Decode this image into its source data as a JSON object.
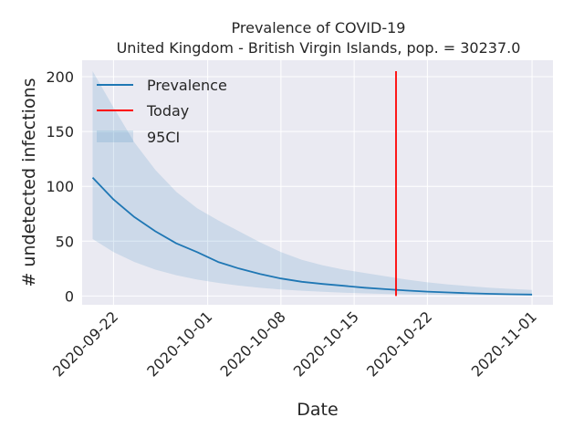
{
  "chart_data": {
    "type": "line",
    "title": "Prevalence of COVID-19",
    "subtitle": "United Kingdom - British Virgin Islands, pop. = 30237.0",
    "xlabel": "Date",
    "ylabel": "# undetected infections",
    "x_ticks": [
      "2020-09-22",
      "2020-10-01",
      "2020-10-08",
      "2020-10-15",
      "2020-10-22",
      "2020-11-01"
    ],
    "y_ticks": [
      0,
      50,
      100,
      150,
      200
    ],
    "ylim": [
      -8,
      215
    ],
    "xlim": [
      "2020-09-19",
      "2020-11-03"
    ],
    "grid": true,
    "legend_position": "top-left",
    "series": [
      {
        "name": "Prevalence",
        "color": "#1f77b4",
        "x": [
          "2020-09-20",
          "2020-09-22",
          "2020-09-24",
          "2020-09-26",
          "2020-09-28",
          "2020-09-30",
          "2020-10-02",
          "2020-10-04",
          "2020-10-06",
          "2020-10-08",
          "2020-10-10",
          "2020-10-12",
          "2020-10-14",
          "2020-10-16",
          "2020-10-18",
          "2020-10-20",
          "2020-10-22",
          "2020-10-24",
          "2020-10-26",
          "2020-10-28",
          "2020-10-30",
          "2020-11-01"
        ],
        "y": [
          108,
          88,
          72,
          59,
          48,
          40,
          31,
          25,
          20,
          16,
          13,
          11,
          9.3,
          7.6,
          6.2,
          5,
          4,
          3.2,
          2.5,
          2,
          1.6,
          1.3
        ]
      }
    ],
    "ci_band": {
      "name": "95CI",
      "color": "#1f77b4",
      "x": [
        "2020-09-20",
        "2020-09-22",
        "2020-09-24",
        "2020-09-26",
        "2020-09-28",
        "2020-09-30",
        "2020-10-02",
        "2020-10-04",
        "2020-10-06",
        "2020-10-08",
        "2020-10-10",
        "2020-10-12",
        "2020-10-14",
        "2020-10-16",
        "2020-10-18",
        "2020-10-20",
        "2020-10-22",
        "2020-10-24",
        "2020-10-26",
        "2020-10-28",
        "2020-10-30",
        "2020-11-01"
      ],
      "upper": [
        205,
        172,
        140,
        115,
        95,
        80,
        69,
        59,
        49,
        40,
        33,
        28,
        24,
        21,
        18,
        15,
        12.5,
        10.5,
        9,
        7.5,
        6.5,
        5.5
      ],
      "lower": [
        52,
        40,
        31,
        24,
        19,
        15,
        12,
        9.5,
        7.5,
        6,
        4.8,
        3.8,
        3,
        2.4,
        1.9,
        1.5,
        1.2,
        1,
        0.8,
        0.6,
        0.5,
        0.4
      ]
    },
    "today": {
      "name": "Today",
      "color": "#ff0000",
      "x": "2020-10-19",
      "y_range": [
        0,
        205
      ]
    }
  }
}
